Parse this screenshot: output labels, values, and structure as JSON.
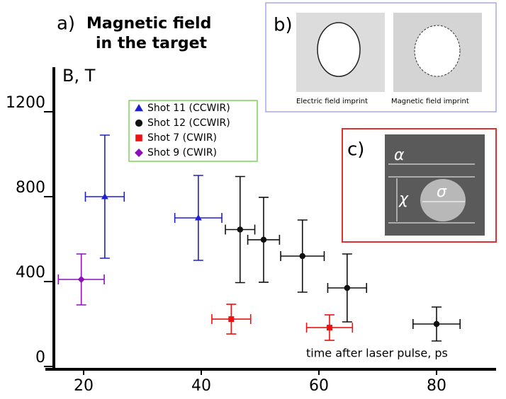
{
  "chart_data": {
    "type": "errorbar-scatter",
    "panel_label": "a)",
    "title": "Magnetic field",
    "subtitle": "in the target",
    "y_label": "B, T",
    "x_label": "time after laser pulse, ps",
    "xlim": [
      15,
      90
    ],
    "xticks": [
      20,
      40,
      60,
      80
    ],
    "ylim": [
      0,
      1400
    ],
    "yticks": [
      0,
      400,
      800,
      1200
    ],
    "series": [
      {
        "name": "Shot 11 (CCWIR)",
        "marker": "triangle",
        "color": "#1f1fcf",
        "x": [
          23.6,
          39.5
        ],
        "values": [
          800,
          700
        ],
        "xerr": [
          3.3,
          4
        ],
        "yerr": [
          290,
          200
        ]
      },
      {
        "name": "Shot 12 (CCWIR)",
        "marker": "circle",
        "color": "#111111",
        "x": [
          46.6,
          50.6,
          57.2,
          64.8,
          80
        ],
        "values": [
          645,
          597,
          520,
          370,
          200
        ],
        "xerr": [
          2.5,
          2.7,
          3.7,
          3.3,
          4
        ],
        "yerr": [
          250,
          200,
          170,
          160,
          80
        ]
      },
      {
        "name": "Shot 7 (CWIR)",
        "marker": "square",
        "color": "#ee1111",
        "x": [
          45.1,
          61.8
        ],
        "values": [
          223,
          183
        ],
        "xerr": [
          3.3,
          3.9
        ],
        "yerr": [
          70,
          60
        ]
      },
      {
        "name": "Shot 9 (CWIR)",
        "marker": "diamond",
        "color": "#8e11b8",
        "x": [
          19.6
        ],
        "values": [
          410
        ],
        "xerr": [
          3.9
        ],
        "yerr": [
          120
        ]
      }
    ]
  },
  "insets": {
    "b": {
      "label": "b)",
      "captions": [
        "Electric field imprint",
        "Magnetic field imprint"
      ]
    },
    "c": {
      "label": "c)",
      "symbols": [
        "α",
        "χ",
        "σ"
      ]
    }
  }
}
